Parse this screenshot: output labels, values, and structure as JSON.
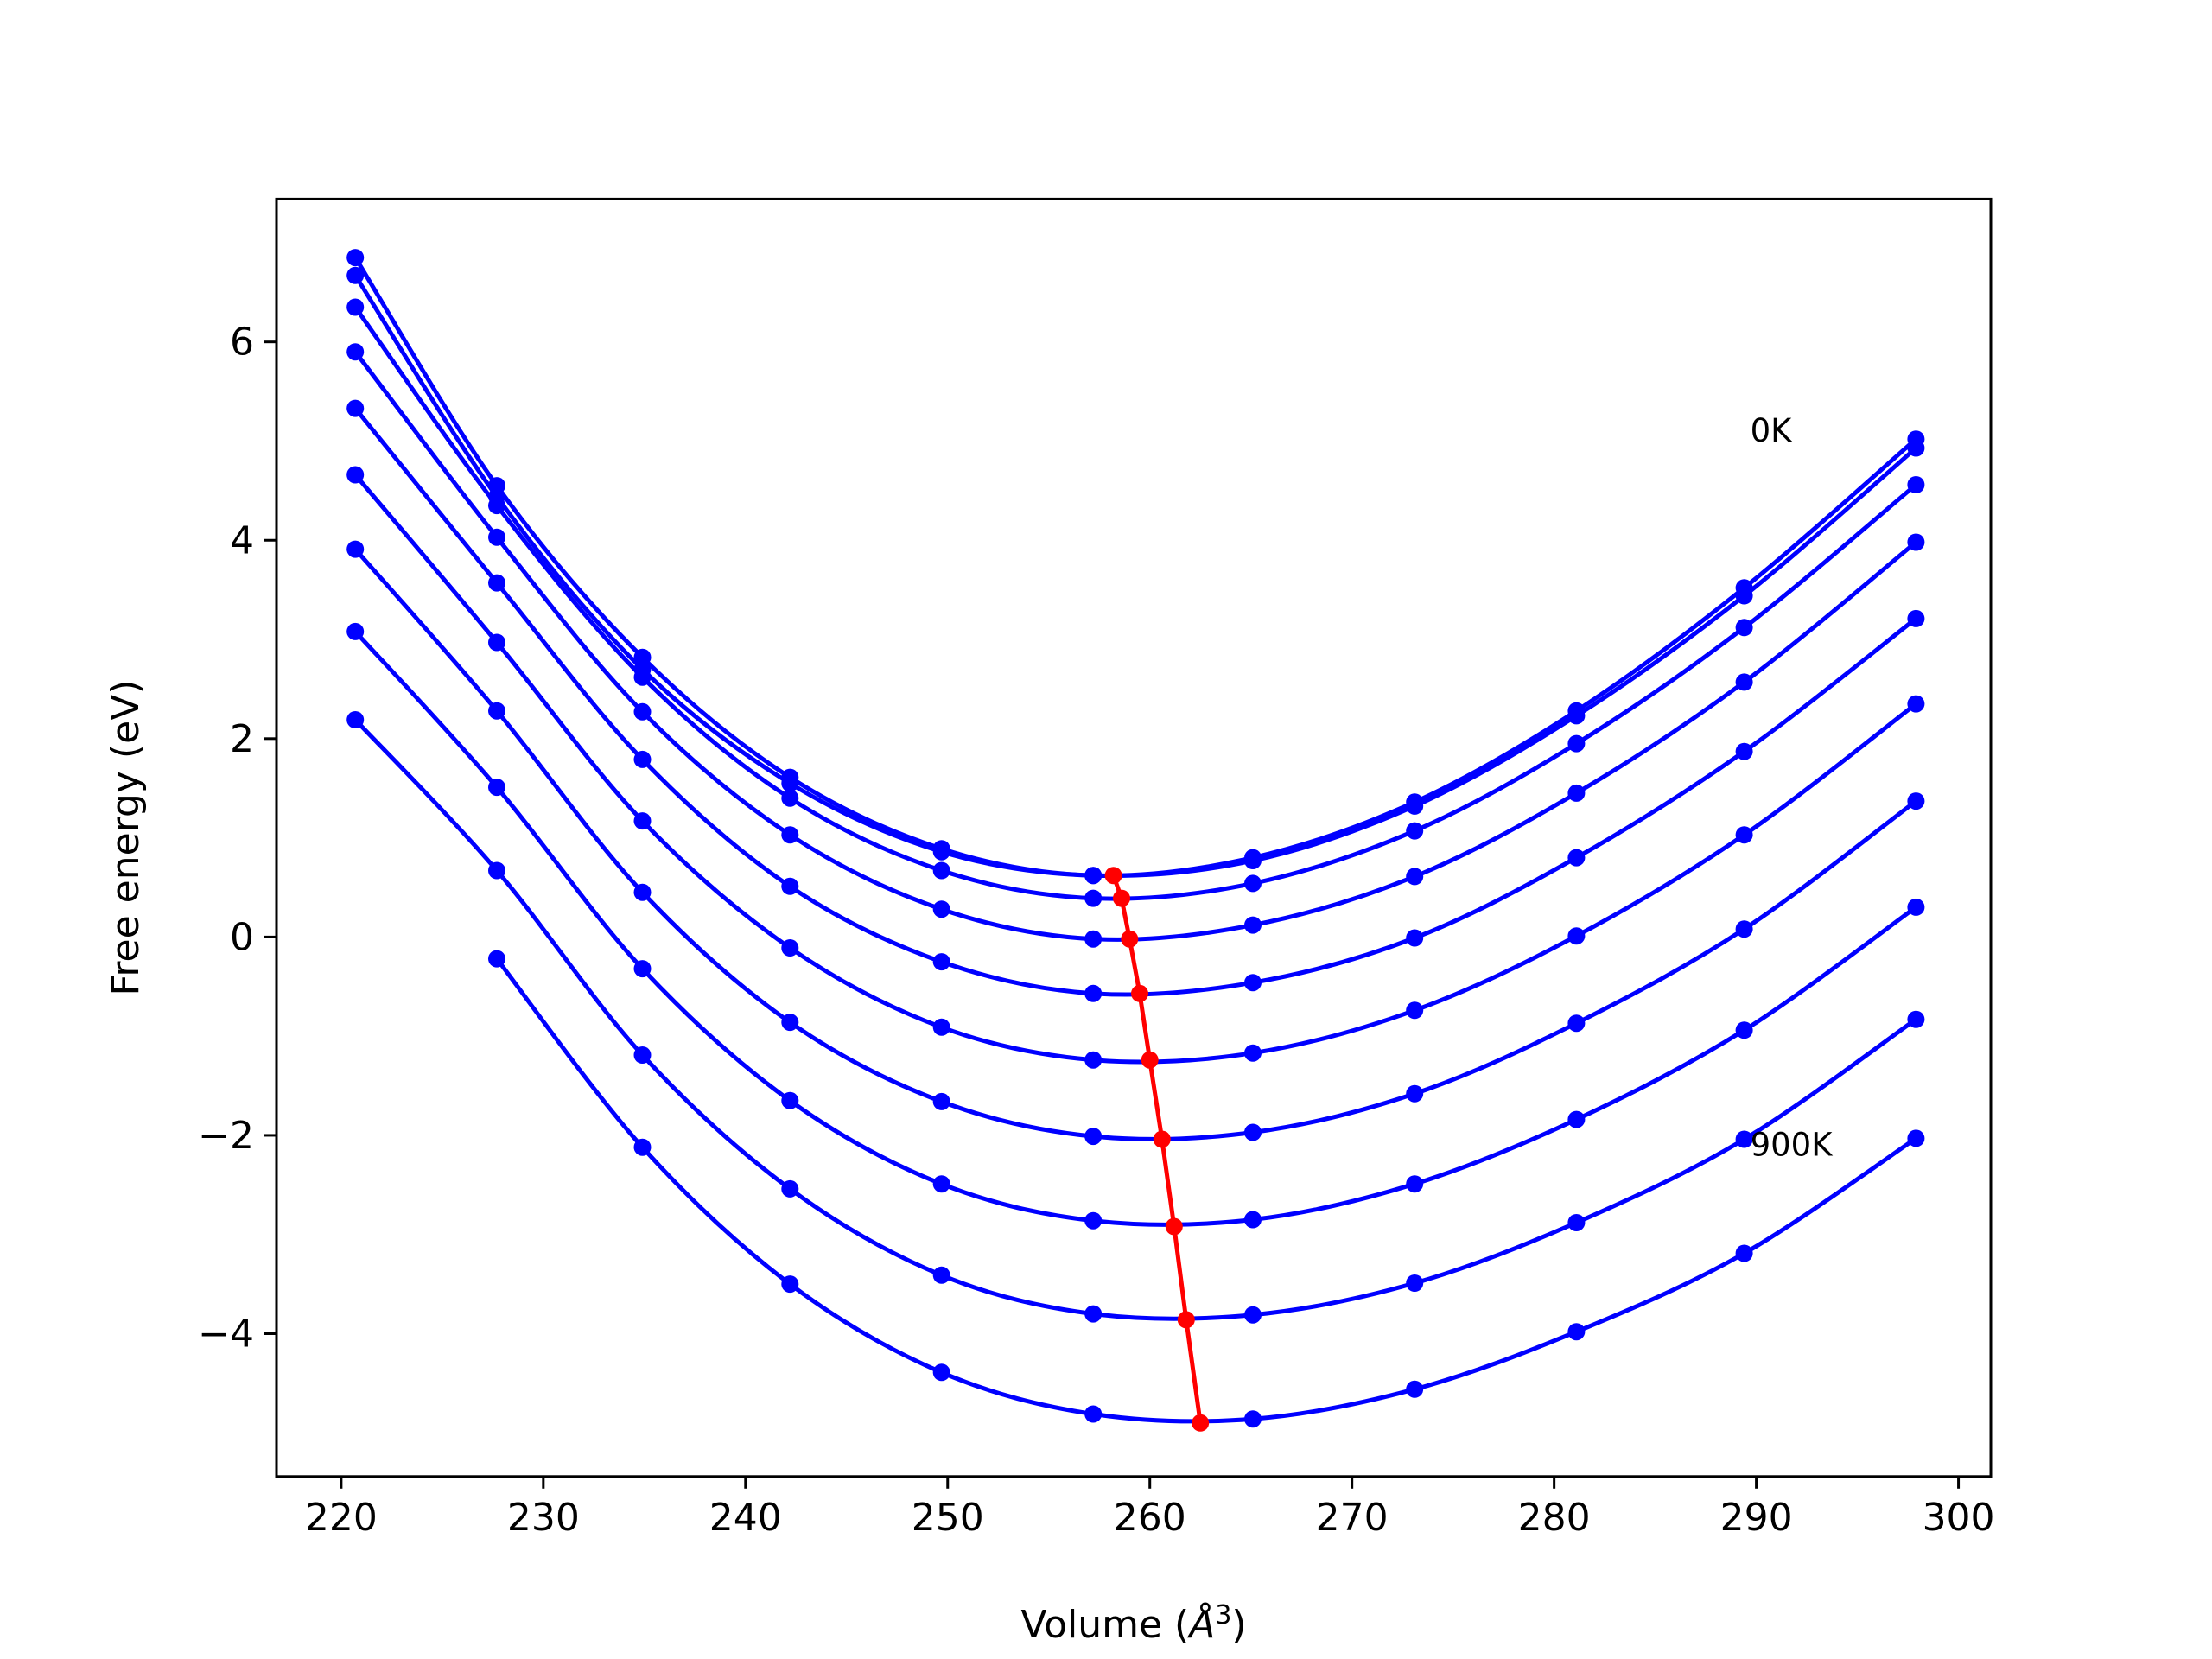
{
  "chart_data": {
    "type": "line",
    "title": "",
    "xlabel": "Volume (",
    "xlabel_symbol": "Å",
    "xlabel_exp": "3",
    "xlabel_close": ")",
    "ylabel": "Free energy (eV)",
    "xlim": [
      216.8,
      301.6
    ],
    "ylim": [
      -5.44,
      7.44
    ],
    "xticks": [
      220,
      230,
      240,
      250,
      260,
      270,
      280,
      290,
      300
    ],
    "yticks": [
      -4,
      -2,
      0,
      2,
      4,
      6
    ],
    "xtick_labels": [
      "220",
      "230",
      "240",
      "250",
      "260",
      "270",
      "280",
      "290",
      "300"
    ],
    "ytick_labels": [
      "−4",
      "−2",
      "0",
      "2",
      "4",
      "6"
    ],
    "grid": false,
    "legend": "none",
    "curve_color": "#0000ff",
    "min_line_color": "#ff0000",
    "annotations": [
      {
        "text": "0K",
        "x": 289.7,
        "y": 5.1
      },
      {
        "text": "900K",
        "x": 289.7,
        "y": -2.1
      }
    ],
    "x": [
      220.7,
      227.7,
      234.9,
      242.2,
      249.7,
      257.2,
      265.1,
      273.1,
      281.1,
      289.4,
      297.9
    ],
    "series": [
      {
        "values": [
          6.85,
          4.55,
          2.82,
          1.61,
          0.89,
          0.62,
          0.8,
          1.36,
          2.28,
          3.52,
          5.02
        ]
      },
      {
        "values": [
          6.67,
          4.44,
          2.7,
          1.55,
          0.86,
          0.62,
          0.77,
          1.32,
          2.23,
          3.44,
          4.93
        ]
      },
      {
        "values": [
          6.35,
          4.35,
          2.62,
          1.4,
          0.67,
          0.39,
          0.54,
          1.07,
          1.95,
          3.12,
          4.56
        ]
      },
      {
        "values": [
          5.9,
          4.03,
          2.27,
          1.03,
          0.28,
          -0.02,
          0.12,
          0.61,
          1.45,
          2.57,
          3.98
        ]
      },
      {
        "values": [
          5.33,
          3.57,
          1.79,
          0.51,
          -0.25,
          -0.57,
          -0.46,
          -0.01,
          0.8,
          1.87,
          3.21
        ]
      },
      {
        "values": [
          4.66,
          2.97,
          1.17,
          -0.11,
          -0.91,
          -1.24,
          -1.17,
          -0.74,
          0.01,
          1.03,
          2.35
        ]
      },
      {
        "values": [
          3.91,
          2.28,
          0.45,
          -0.86,
          -1.66,
          -2.01,
          -1.97,
          -1.58,
          -0.87,
          0.08,
          1.37
        ]
      },
      {
        "values": [
          3.08,
          1.51,
          -0.32,
          -1.65,
          -2.49,
          -2.86,
          -2.85,
          -2.49,
          -1.84,
          -0.94,
          0.3
        ]
      },
      {
        "values": [
          2.19,
          0.67,
          -1.19,
          -2.54,
          -3.41,
          -3.8,
          -3.81,
          -3.49,
          -2.88,
          -2.04,
          -0.83
        ]
      },
      {
        "values": [
          null,
          -0.22,
          -2.12,
          -3.5,
          -4.39,
          -4.81,
          -4.86,
          -4.56,
          -3.98,
          -3.19,
          -2.03
        ]
      }
    ],
    "minima": [
      {
        "x": 258.2,
        "y": 0.62
      },
      {
        "x": 258.6,
        "y": 0.39
      },
      {
        "x": 259.0,
        "y": -0.02
      },
      {
        "x": 259.5,
        "y": -0.57
      },
      {
        "x": 260.0,
        "y": -1.24
      },
      {
        "x": 260.6,
        "y": -2.04
      },
      {
        "x": 261.2,
        "y": -2.92
      },
      {
        "x": 261.8,
        "y": -3.86
      },
      {
        "x": 262.5,
        "y": -4.9
      }
    ]
  }
}
